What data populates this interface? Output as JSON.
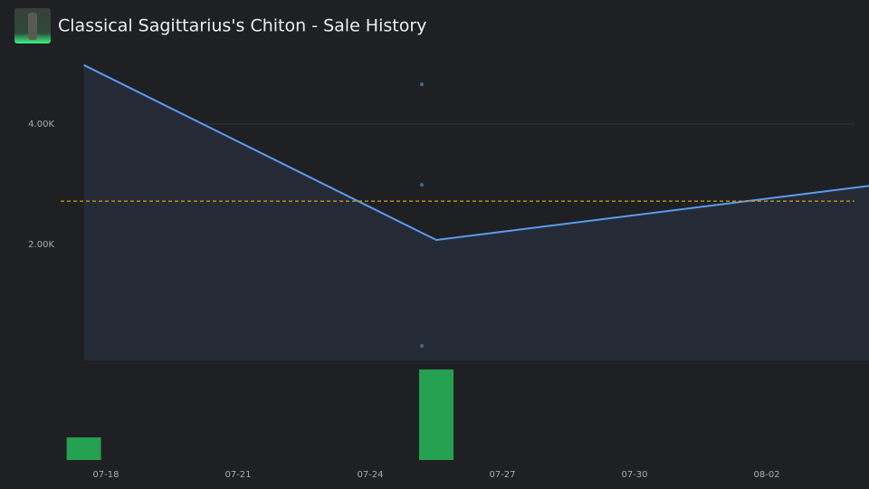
{
  "header": {
    "title": "Classical Sagittarius's Chiton - Sale History"
  },
  "chart_data": {
    "type": "line",
    "x": [
      "07-17",
      "07-25",
      "08-04"
    ],
    "series": [
      {
        "color": "#5b9bf0",
        "values": [
          4980,
          2075,
          2990
        ]
      }
    ],
    "points": {
      "x": [
        "07-25",
        "07-25",
        "07-25"
      ],
      "values": [
        4660,
        2990,
        316
      ],
      "color": "#3d6a9e"
    },
    "reference_line": {
      "value": 2720,
      "color": "#d4a017"
    },
    "volume": {
      "x": [
        "07-17",
        "07-25"
      ],
      "values": [
        1,
        4
      ],
      "ylim": [
        0,
        4
      ],
      "color": "#23a050"
    },
    "xlim": [
      "07-17",
      "08-04"
    ],
    "xticks": [
      "07-18",
      "07-21",
      "07-24",
      "07-27",
      "07-30",
      "08-02"
    ],
    "ylim": [
      0,
      5000
    ],
    "yticks": [
      {
        "value": 2000,
        "label": "2.00K"
      },
      {
        "value": 4000,
        "label": "4.00K"
      }
    ],
    "grid": true
  }
}
